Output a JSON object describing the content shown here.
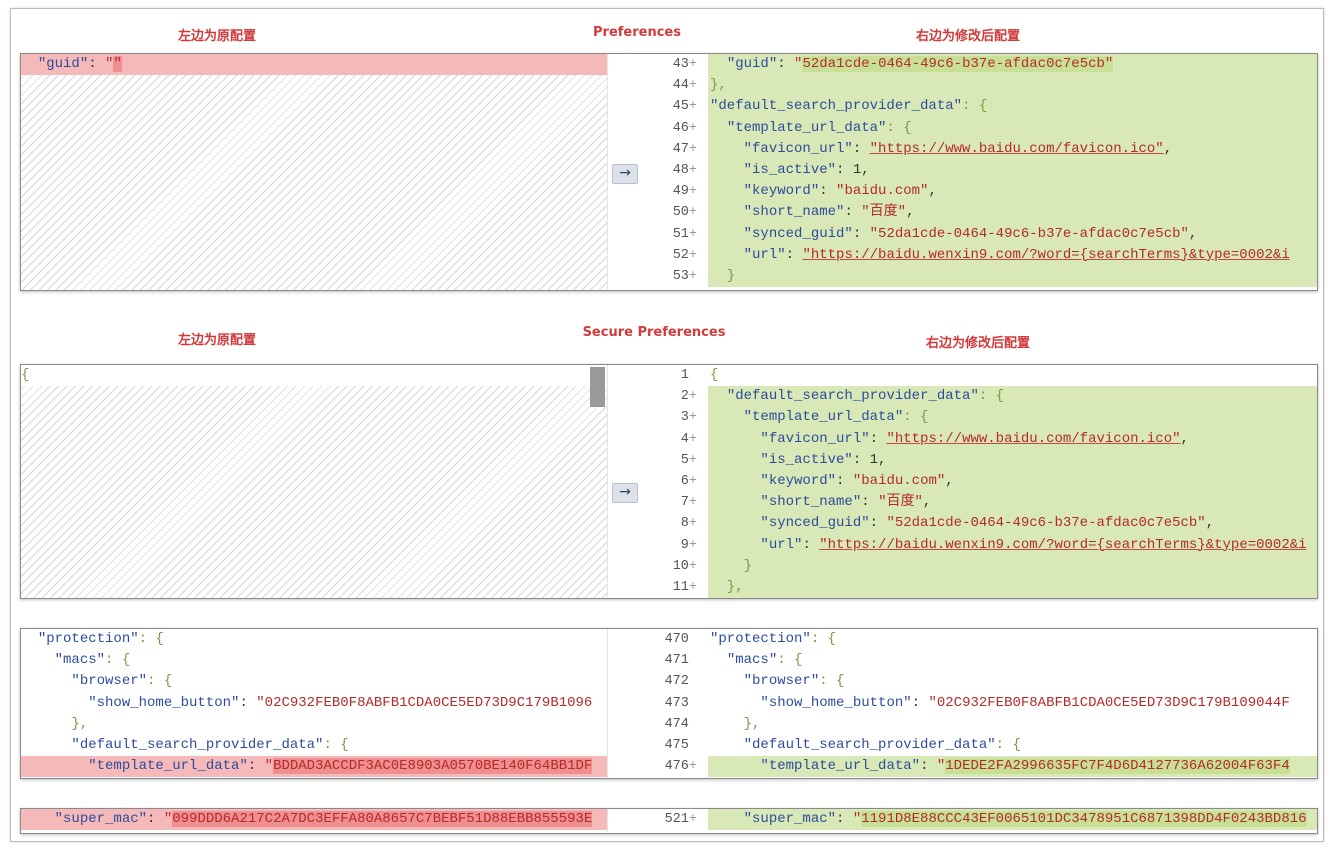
{
  "labels": {
    "top": {
      "left": "左边为原配置",
      "center": "Preferences",
      "right": "右边为修改后配置"
    },
    "mid": {
      "left": "左边为原配置",
      "center": "Secure Preferences",
      "right": "右边为修改后配置"
    }
  },
  "colors": {
    "added_bg": "#d8e8b6",
    "removed_bg": "#f6b9b9",
    "label": "#d23b3b"
  },
  "panels": [
    {
      "left": [
        {
          "text": "  \"guid\": \"\"",
          "mark": "del",
          "hl": true
        }
      ],
      "left_hatched": true,
      "right": [
        {
          "num": "43",
          "plus": true,
          "text": "  \"guid\": \"52da1cde-0464-49c6-b37e-afdac0c7e5cb\"",
          "mark": "add",
          "hl": true
        },
        {
          "num": "44",
          "plus": true,
          "text": "},",
          "mark": "add"
        },
        {
          "num": "45",
          "plus": true,
          "text": "\"default_search_provider_data\": {",
          "mark": "add"
        },
        {
          "num": "46",
          "plus": true,
          "text": "  \"template_url_data\": {",
          "mark": "add"
        },
        {
          "num": "47",
          "plus": true,
          "text": "    \"favicon_url\": \"https://www.baidu.com/favicon.ico\",",
          "mark": "add"
        },
        {
          "num": "48",
          "plus": true,
          "text": "    \"is_active\": 1,",
          "mark": "add"
        },
        {
          "num": "49",
          "plus": true,
          "text": "    \"keyword\": \"baidu.com\",",
          "mark": "add"
        },
        {
          "num": "50",
          "plus": true,
          "text": "    \"short_name\": \"百度\",",
          "mark": "add"
        },
        {
          "num": "51",
          "plus": true,
          "text": "    \"synced_guid\": \"52da1cde-0464-49c6-b37e-afdac0c7e5cb\",",
          "mark": "add"
        },
        {
          "num": "52",
          "plus": true,
          "text": "    \"url\": \"https://baidu.wenxin9.com/?word={searchTerms}&type=0002&i",
          "mark": "add"
        },
        {
          "num": "53",
          "plus": true,
          "text": "  }",
          "mark": "add"
        }
      ]
    },
    {
      "left": [
        {
          "text": "{",
          "mark": "none"
        }
      ],
      "left_hatched": true,
      "right": [
        {
          "num": "1",
          "plus": false,
          "text": "{",
          "mark": "none"
        },
        {
          "num": "2",
          "plus": true,
          "text": "  \"default_search_provider_data\": {",
          "mark": "add"
        },
        {
          "num": "3",
          "plus": true,
          "text": "    \"template_url_data\": {",
          "mark": "add"
        },
        {
          "num": "4",
          "plus": true,
          "text": "      \"favicon_url\": \"https://www.baidu.com/favicon.ico\",",
          "mark": "add"
        },
        {
          "num": "5",
          "plus": true,
          "text": "      \"is_active\": 1,",
          "mark": "add"
        },
        {
          "num": "6",
          "plus": true,
          "text": "      \"keyword\": \"baidu.com\",",
          "mark": "add"
        },
        {
          "num": "7",
          "plus": true,
          "text": "      \"short_name\": \"百度\",",
          "mark": "add"
        },
        {
          "num": "8",
          "plus": true,
          "text": "      \"synced_guid\": \"52da1cde-0464-49c6-b37e-afdac0c7e5cb\",",
          "mark": "add"
        },
        {
          "num": "9",
          "plus": true,
          "text": "      \"url\": \"https://baidu.wenxin9.com/?word={searchTerms}&type=0002&i",
          "mark": "add"
        },
        {
          "num": "10",
          "plus": true,
          "text": "    }",
          "mark": "add"
        },
        {
          "num": "11",
          "plus": true,
          "text": "  },",
          "mark": "add"
        }
      ]
    },
    {
      "left": [
        {
          "text": "  \"protection\": {",
          "mark": "none"
        },
        {
          "text": "    \"macs\": {",
          "mark": "none"
        },
        {
          "text": "      \"browser\": {",
          "mark": "none"
        },
        {
          "text": "        \"show_home_button\": \"02C932FEB0F8ABFB1CDA0CE5ED73D9C179B1096",
          "mark": "none"
        },
        {
          "text": "      },",
          "mark": "none"
        },
        {
          "text": "      \"default_search_provider_data\": {",
          "mark": "none"
        },
        {
          "text": "        \"template_url_data\": \"BDDAD3ACCDF3AC0E8903A0570BE140F64BB1DF",
          "mark": "del",
          "hl": true
        }
      ],
      "left_hatched": false,
      "right": [
        {
          "num": "470",
          "plus": false,
          "text": "\"protection\": {",
          "mark": "none"
        },
        {
          "num": "471",
          "plus": false,
          "text": "  \"macs\": {",
          "mark": "none"
        },
        {
          "num": "472",
          "plus": false,
          "text": "    \"browser\": {",
          "mark": "none"
        },
        {
          "num": "473",
          "plus": false,
          "text": "      \"show_home_button\": \"02C932FEB0F8ABFB1CDA0CE5ED73D9C179B109044F",
          "mark": "none"
        },
        {
          "num": "474",
          "plus": false,
          "text": "    },",
          "mark": "none"
        },
        {
          "num": "475",
          "plus": false,
          "text": "    \"default_search_provider_data\": {",
          "mark": "none"
        },
        {
          "num": "476",
          "plus": true,
          "text": "      \"template_url_data\": \"1DEDE2FA2996635FC7F4D6D4127736A62004F63F4",
          "mark": "add",
          "hl": true
        }
      ]
    },
    {
      "left": [
        {
          "text": "    \"super_mac\": \"099DDD6A217C2A7DC3EFFA80A8657C7BEBF51D88EBB855593E",
          "mark": "del",
          "hl": true
        }
      ],
      "left_hatched": false,
      "right": [
        {
          "num": "521",
          "plus": true,
          "text": "    \"super_mac\": \"1191D8E88CCC43EF0065101DC3478951C6871398DD4F0243BD816",
          "mark": "add",
          "hl": true
        }
      ]
    }
  ]
}
